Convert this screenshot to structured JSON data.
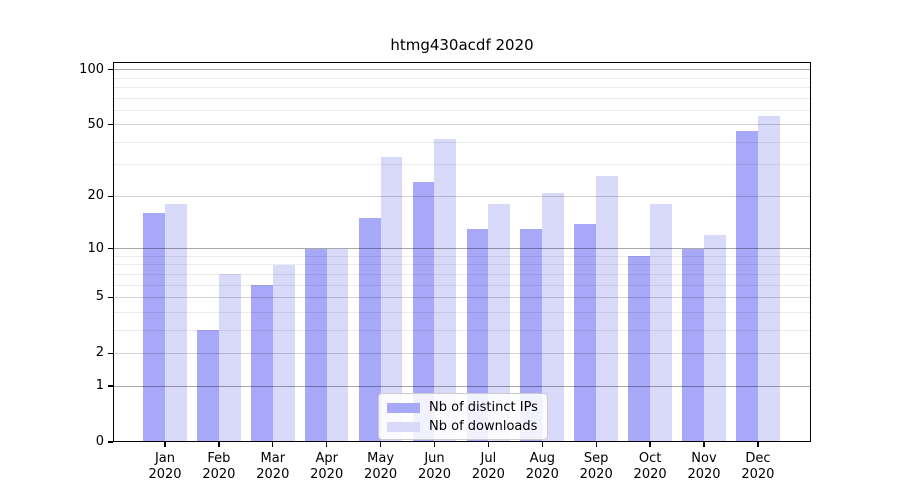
{
  "chart_data": {
    "type": "bar",
    "title": "htmg430acdf 2020",
    "x_axis": {
      "categories": [
        "Jan",
        "Feb",
        "Mar",
        "Apr",
        "May",
        "Jun",
        "Jul",
        "Aug",
        "Sep",
        "Oct",
        "Nov",
        "Dec"
      ],
      "year": "2020"
    },
    "series": [
      {
        "name": "Nb of distinct IPs",
        "color": "#a8a8f9",
        "values": [
          16,
          3,
          6,
          10,
          15,
          24,
          13,
          13,
          14,
          9,
          10,
          46
        ]
      },
      {
        "name": "Nb of downloads",
        "color": "#d9d9fa",
        "values": [
          18,
          7,
          8,
          10,
          33,
          42,
          18,
          21,
          26,
          18,
          12,
          56
        ]
      }
    ],
    "y_axis": {
      "scale": "log10(1+y)",
      "ymax": 110,
      "tick_labels": [
        "0",
        "1",
        "2",
        "5",
        "10",
        "20",
        "50",
        "100"
      ],
      "major_gridlines": [
        1,
        10,
        100
      ],
      "labeled_minor_gridlines": [
        2,
        5,
        20,
        50
      ],
      "minor_gridlines": [
        3,
        4,
        6,
        7,
        8,
        9,
        30,
        40,
        60,
        70,
        80,
        90
      ]
    },
    "legend": {
      "position": "lower center"
    },
    "grid": "on"
  }
}
